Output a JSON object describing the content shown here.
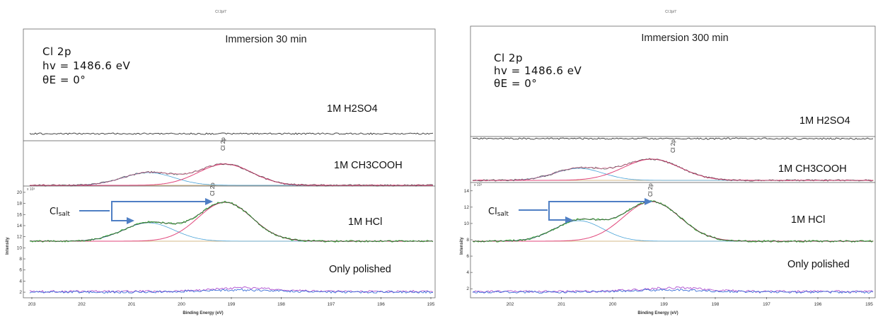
{
  "chart_data": [
    {
      "type": "line",
      "header": "Cl 2p/7",
      "title": "Immersion 30 min",
      "params": [
        "Cl 2p",
        "hv = 1486.6 eV",
        "θE = 0°"
      ],
      "xlabel": "Binding Energy (eV)",
      "ylabel": "Intensity",
      "x_ticks": [
        "203",
        "202",
        "201",
        "200",
        "199",
        "198",
        "197",
        "196",
        "195"
      ],
      "y_ticks": [
        "2",
        "4",
        "6",
        "8",
        "10",
        "12",
        "14",
        "16",
        "18",
        "20"
      ],
      "y_multiplier": "x 10³",
      "ylim": [
        1.5,
        20.5
      ],
      "samples": [
        "1M H2SO4",
        "1M CH3COOH",
        "1M HCl",
        "Only polished"
      ],
      "peak_label": "Cl 2p",
      "annotation": "Clsalt",
      "colors": {
        "envelope": "#333333",
        "peak_main": "#e0457a",
        "peak_salt": "#3cae3c",
        "background": "#4aa3d8",
        "polished_a": "#3b6fd8",
        "polished_b": "#b050d0"
      }
    },
    {
      "type": "line",
      "header": "Cl 2p/7",
      "title": "Immersion 300 min",
      "params": [
        "Cl 2p",
        "hv = 1486.6 eV",
        "θE = 0°"
      ],
      "xlabel": "Binding Energy (eV)",
      "ylabel": "Intensity",
      "x_ticks": [
        "202",
        "201",
        "200",
        "199",
        "198",
        "197",
        "196",
        "195"
      ],
      "y_ticks": [
        "2",
        "4",
        "6",
        "8",
        "10",
        "12",
        "14"
      ],
      "y_multiplier": "x 10³",
      "ylim": [
        1.5,
        14.5
      ],
      "samples": [
        "1M H2SO4",
        "1M CH3COOH",
        "1M HCl",
        "Only polished"
      ],
      "peak_label": "Cl 2p",
      "annotation": "Clsalt",
      "colors": {
        "envelope": "#333333",
        "peak_main": "#e0457a",
        "peak_salt": "#3cae3c",
        "background": "#4aa3d8",
        "polished_a": "#3b6fd8",
        "polished_b": "#b050d0"
      }
    }
  ]
}
